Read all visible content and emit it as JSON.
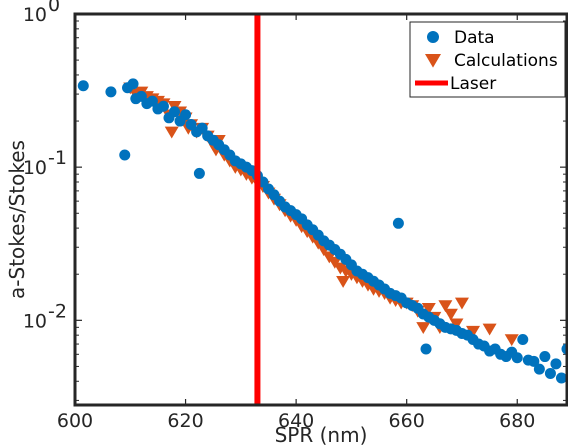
{
  "chart_data": {
    "type": "scatter",
    "xlabel": "SPR (nm)",
    "ylabel": "a-Stokes/Stokes",
    "xlim": [
      600,
      689
    ],
    "ylim": [
      0.0028,
      1
    ],
    "yscale": "log",
    "x_ticks": [
      600,
      620,
      640,
      660,
      680
    ],
    "x_tick_labels": [
      "600",
      "620",
      "640",
      "660",
      "680"
    ],
    "y_ticks": [
      1,
      0.1,
      0.01
    ],
    "y_tick_labels": [
      {
        "base": "10",
        "exp": "0"
      },
      {
        "base": "10",
        "exp": "-1"
      },
      {
        "base": "10",
        "exp": "-2"
      }
    ],
    "legend_position": "top-right",
    "colors": {
      "data": "#0072BD",
      "calculations": "#D95319",
      "laser": "#FF0000",
      "axes": "#262626"
    },
    "series": [
      {
        "name": "Data",
        "marker": "circle",
        "x": [
          601.5,
          606.5,
          609,
          609.5,
          610.5,
          611,
          612,
          613,
          614,
          615,
          616,
          617,
          618,
          619,
          620,
          621,
          622,
          622.5,
          623,
          624,
          625,
          626,
          627,
          628,
          629,
          630,
          631,
          632,
          633,
          634,
          635,
          636,
          637,
          638,
          639,
          640,
          641,
          642,
          643,
          644,
          645,
          646,
          647,
          648,
          649,
          650,
          651,
          652,
          653,
          654,
          655,
          656,
          657,
          658,
          658.5,
          659,
          660,
          661,
          662,
          663,
          663.5,
          664,
          665,
          666,
          667,
          668,
          669,
          670,
          671,
          672,
          673,
          674,
          675,
          676,
          677,
          678,
          679,
          680,
          681,
          682,
          683,
          684,
          685,
          686,
          687,
          688,
          689
        ],
        "y": [
          0.34,
          0.31,
          0.12,
          0.33,
          0.35,
          0.28,
          0.29,
          0.26,
          0.27,
          0.24,
          0.25,
          0.21,
          0.23,
          0.2,
          0.22,
          0.19,
          0.17,
          0.091,
          0.18,
          0.16,
          0.15,
          0.14,
          0.13,
          0.12,
          0.11,
          0.105,
          0.1,
          0.095,
          0.088,
          0.08,
          0.072,
          0.066,
          0.06,
          0.055,
          0.052,
          0.049,
          0.046,
          0.042,
          0.039,
          0.036,
          0.033,
          0.031,
          0.029,
          0.027,
          0.025,
          0.023,
          0.021,
          0.02,
          0.019,
          0.018,
          0.017,
          0.016,
          0.015,
          0.0145,
          0.043,
          0.014,
          0.013,
          0.0125,
          0.012,
          0.011,
          0.0065,
          0.0105,
          0.01,
          0.0095,
          0.009,
          0.0088,
          0.0086,
          0.0082,
          0.008,
          0.0075,
          0.007,
          0.0068,
          0.0063,
          0.0065,
          0.006,
          0.0058,
          0.0062,
          0.0057,
          0.0075,
          0.0055,
          0.0054,
          0.0048,
          0.0058,
          0.0045,
          0.0052,
          0.0042,
          0.0065
        ]
      },
      {
        "name": "Calculations",
        "marker": "triangle-down",
        "x": [
          610,
          611,
          612,
          613,
          614,
          615,
          616,
          617,
          617.5,
          618,
          619,
          620,
          620.5,
          621,
          622,
          623,
          624,
          625,
          625.5,
          626,
          627,
          628,
          629,
          630,
          631,
          632,
          633,
          634,
          635,
          636,
          637,
          638,
          639,
          640,
          641,
          642,
          643,
          644,
          645,
          646,
          647,
          648,
          648.5,
          649,
          650,
          651,
          652,
          653,
          654,
          655,
          656,
          657,
          658,
          659,
          660,
          661,
          662,
          663,
          664,
          665,
          666,
          667,
          668,
          669,
          670,
          672,
          675,
          679
        ],
        "y": [
          0.33,
          0.3,
          0.31,
          0.29,
          0.28,
          0.27,
          0.26,
          0.22,
          0.17,
          0.25,
          0.23,
          0.21,
          0.18,
          0.19,
          0.17,
          0.18,
          0.16,
          0.14,
          0.13,
          0.15,
          0.12,
          0.11,
          0.1,
          0.096,
          0.09,
          0.085,
          0.08,
          0.075,
          0.068,
          0.062,
          0.057,
          0.052,
          0.048,
          0.045,
          0.041,
          0.038,
          0.035,
          0.032,
          0.029,
          0.026,
          0.024,
          0.022,
          0.018,
          0.021,
          0.02,
          0.019,
          0.018,
          0.017,
          0.016,
          0.0155,
          0.015,
          0.014,
          0.0135,
          0.013,
          0.013,
          0.0125,
          0.0115,
          0.009,
          0.012,
          0.0105,
          0.009,
          0.0125,
          0.011,
          0.0095,
          0.013,
          0.0085,
          0.0088,
          0.0075
        ]
      },
      {
        "name": "Laser",
        "marker": "vline",
        "x": [
          633
        ]
      }
    ]
  }
}
